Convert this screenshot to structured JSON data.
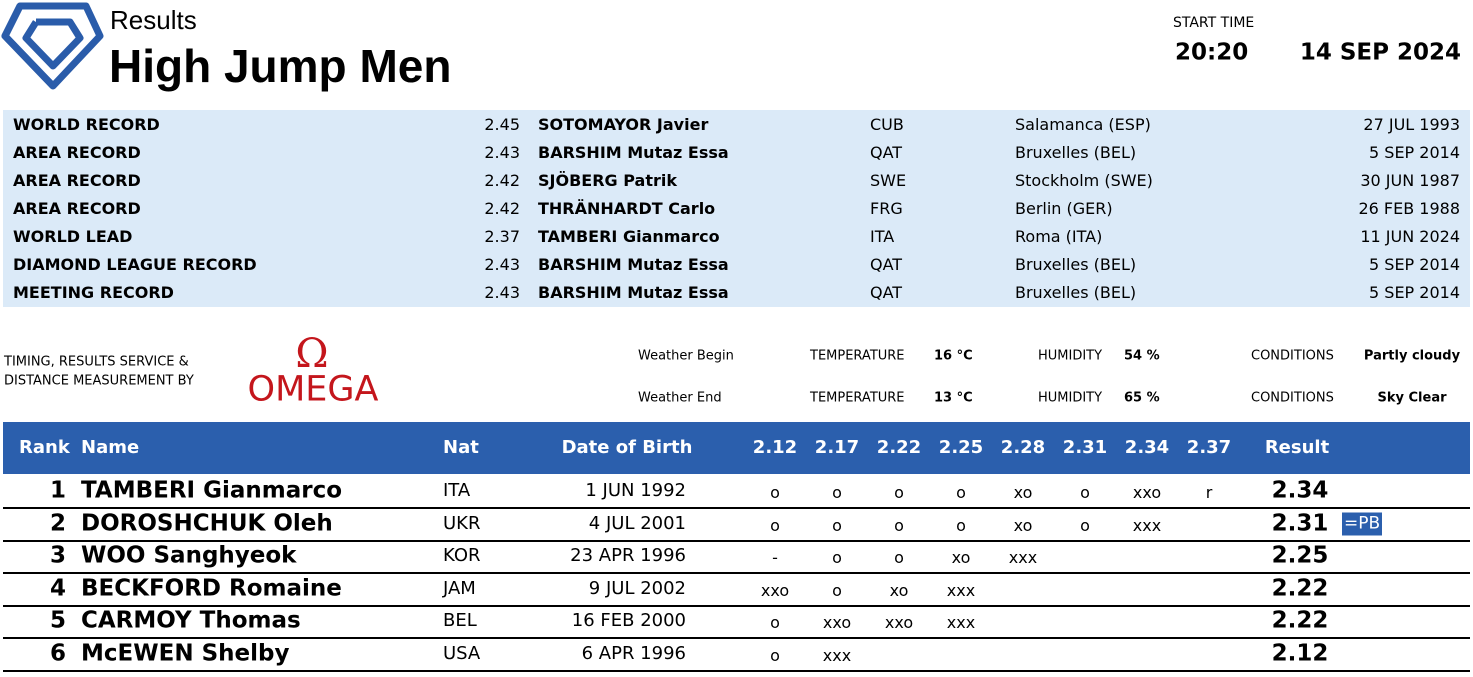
{
  "header": {
    "subtitle": "Results",
    "title": "High Jump Men",
    "start_time_label": "START TIME",
    "start_time": "20:20",
    "date": "14 SEP 2024"
  },
  "records": {
    "rows": [
      [
        "WORLD RECORD",
        "2.45",
        "SOTOMAYOR Javier",
        "CUB",
        "Salamanca (ESP)",
        "27 JUL 1993"
      ],
      [
        "AREA RECORD",
        "2.43",
        "BARSHIM Mutaz Essa",
        "QAT",
        "Bruxelles (BEL)",
        "5 SEP 2014"
      ],
      [
        "AREA RECORD",
        "2.42",
        "SJÖBERG Patrik",
        "SWE",
        "Stockholm (SWE)",
        "30 JUN 1987"
      ],
      [
        "AREA RECORD",
        "2.42",
        "THRÄNHARDT Carlo",
        "FRG",
        "Berlin (GER)",
        "26 FEB 1988"
      ],
      [
        "WORLD LEAD",
        "2.37",
        "TAMBERI Gianmarco",
        "ITA",
        "Roma (ITA)",
        "11 JUN 2024"
      ],
      [
        "DIAMOND LEAGUE RECORD",
        "2.43",
        "BARSHIM Mutaz Essa",
        "QAT",
        "Bruxelles (BEL)",
        "5 SEP 2014"
      ],
      [
        "MEETING RECORD",
        "2.43",
        "BARSHIM Mutaz Essa",
        "QAT",
        "Bruxelles (BEL)",
        "5 SEP 2014"
      ]
    ]
  },
  "timing": {
    "line1": "TIMING, RESULTS SERVICE &",
    "line2": "DISTANCE MEASUREMENT BY",
    "logo_symbol": "Ω",
    "logo_text": "OMEGA"
  },
  "weather": {
    "rows": [
      {
        "label": "Weather Begin",
        "temperature_label": "TEMPERATURE",
        "temperature": "16 °C",
        "humidity_label": "HUMIDITY",
        "humidity": "54 %",
        "conditions_label": "CONDITIONS",
        "conditions": "Partly cloudy"
      },
      {
        "label": "Weather End",
        "temperature_label": "TEMPERATURE",
        "temperature": "13 °C",
        "humidity_label": "HUMIDITY",
        "humidity": "65 %",
        "conditions_label": "CONDITIONS",
        "conditions": "Sky Clear"
      }
    ]
  },
  "results": {
    "columns": {
      "rank": "Rank",
      "name": "Name",
      "nat": "Nat",
      "dob": "Date of Birth",
      "heights": [
        "2.12",
        "2.17",
        "2.22",
        "2.25",
        "2.28",
        "2.31",
        "2.34",
        "2.37"
      ],
      "result": "Result"
    },
    "rows": [
      {
        "rank": "1",
        "name": "TAMBERI Gianmarco",
        "nat": "ITA",
        "dob": "1 JUN 1992",
        "attempts": [
          "o",
          "o",
          "o",
          "o",
          "xo",
          "o",
          "xxo",
          "r"
        ],
        "result": "2.34"
      },
      {
        "rank": "2",
        "name": "DOROSHCHUK Oleh",
        "nat": "UKR",
        "dob": "4 JUL 2001",
        "attempts": [
          "o",
          "o",
          "o",
          "o",
          "xo",
          "o",
          "xxx"
        ],
        "result": "2.31",
        "note": "=PB"
      },
      {
        "rank": "3",
        "name": "WOO Sanghyeok",
        "nat": "KOR",
        "dob": "23 APR 1996",
        "attempts": [
          "-",
          "o",
          "o",
          "xo",
          "xxx"
        ],
        "result": "2.25"
      },
      {
        "rank": "4",
        "name": "BECKFORD Romaine",
        "nat": "JAM",
        "dob": "9 JUL 2002",
        "attempts": [
          "xxo",
          "o",
          "xo",
          "xxx"
        ],
        "result": "2.22"
      },
      {
        "rank": "5",
        "name": "CARMOY Thomas",
        "nat": "BEL",
        "dob": "16 FEB 2000",
        "attempts": [
          "o",
          "xxo",
          "xxo",
          "xxx"
        ],
        "result": "2.22"
      },
      {
        "rank": "6",
        "name": "McEWEN Shelby",
        "nat": "USA",
        "dob": "6 APR 1996",
        "attempts": [
          "o",
          "xxx"
        ],
        "result": "2.12"
      }
    ]
  }
}
